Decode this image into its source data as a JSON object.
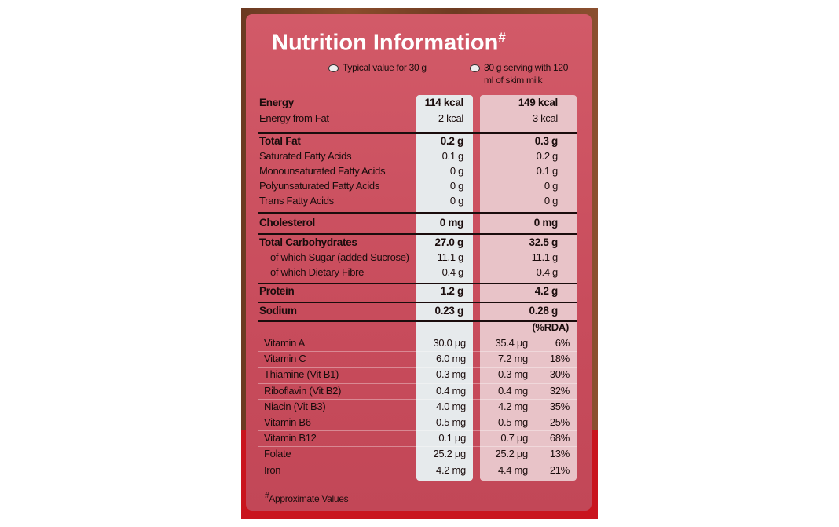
{
  "header": {
    "title": "Nutrition Information",
    "title_mark": "#"
  },
  "legend": [
    "Typical value for 30 g",
    "30 g serving with 120 ml of skim milk"
  ],
  "groups": [
    [
      {
        "label": "Energy",
        "typical": "114 kcal",
        "serving": "149 kcal"
      },
      {
        "label": "Energy from Fat",
        "typical": "2 kcal",
        "serving": "3 kcal"
      }
    ],
    [
      {
        "label": "Total Fat",
        "typical": "0.2 g",
        "serving": "0.3 g"
      },
      {
        "label": "Saturated Fatty Acids",
        "typical": "0.1 g",
        "serving": "0.2 g"
      },
      {
        "label": "Monounsaturated Fatty Acids",
        "typical": "0 g",
        "serving": "0.1 g"
      },
      {
        "label": "Polyunsaturated Fatty Acids",
        "typical": "0 g",
        "serving": "0 g"
      },
      {
        "label": "Trans Fatty Acids",
        "typical": "0 g",
        "serving": "0 g"
      }
    ],
    [
      {
        "label": "Cholesterol",
        "typical": "0 mg",
        "serving": "0 mg"
      }
    ],
    [
      {
        "label": "Total Carbohydrates",
        "typical": "27.0 g",
        "serving": "32.5 g"
      },
      {
        "label": "of which Sugar (added Sucrose)",
        "typical": "11.1 g",
        "serving": "11.1 g"
      },
      {
        "label": "of which Dietary Fibre",
        "typical": "0.4 g",
        "serving": "0.4 g"
      }
    ],
    [
      {
        "label": "Protein",
        "typical": "1.2 g",
        "serving": "4.2 g"
      }
    ],
    [
      {
        "label": "Sodium",
        "typical": "0.23 g",
        "serving": "0.28 g"
      }
    ]
  ],
  "rda_header": "(%RDA)",
  "vitamins": [
    {
      "label": "Vitamin A",
      "typical": "30.0 µg",
      "serving": "35.4 µg",
      "rda": "6%"
    },
    {
      "label": "Vitamin C",
      "typical": "6.0 mg",
      "serving": "7.2 mg",
      "rda": "18%"
    },
    {
      "label": "Thiamine (Vit B1)",
      "typical": "0.3 mg",
      "serving": "0.3 mg",
      "rda": "30%"
    },
    {
      "label": "Riboflavin (Vit B2)",
      "typical": "0.4 mg",
      "serving": "0.4 mg",
      "rda": "32%"
    },
    {
      "label": "Niacin (Vit B3)",
      "typical": "4.0 mg",
      "serving": "4.2 mg",
      "rda": "35%"
    },
    {
      "label": "Vitamin B6",
      "typical": "0.5 mg",
      "serving": "0.5 mg",
      "rda": "25%"
    },
    {
      "label": "Vitamin B12",
      "typical": "0.1 µg",
      "serving": "0.7 µg",
      "rda": "68%"
    },
    {
      "label": "Folate",
      "typical": "25.2 µg",
      "serving": "25.2 µg",
      "rda": "13%"
    },
    {
      "label": "Iron",
      "typical": "4.2 mg",
      "serving": "4.4 mg",
      "rda": "21%"
    }
  ],
  "footnote": {
    "mark": "#",
    "text": "Approximate Values"
  }
}
